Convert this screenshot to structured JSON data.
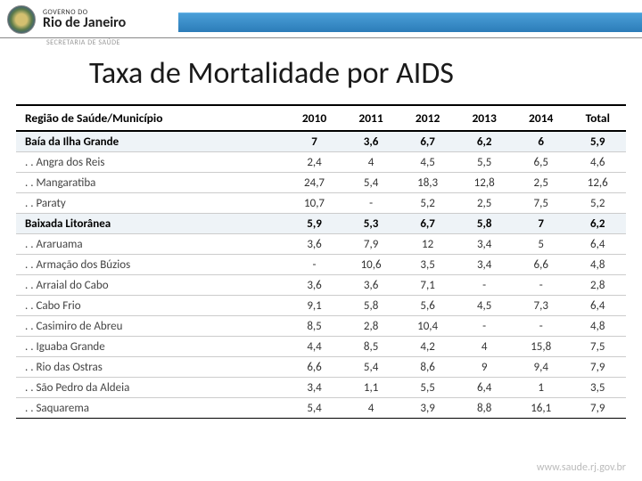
{
  "header": {
    "gov_small": "GOVERNO DO",
    "gov_main": "Rio de Janeiro",
    "secretaria": "SECRETARIA DE SAÚDE"
  },
  "title": "Taxa de Mortalidade por AIDS",
  "table": {
    "columns": [
      "Região de Saúde/Município",
      "2010",
      "2011",
      "2012",
      "2013",
      "2014",
      "Total"
    ],
    "rows": [
      {
        "type": "region",
        "cells": [
          "Baía da Ilha Grande",
          "7",
          "3,6",
          "6,7",
          "6,2",
          "6",
          "5,9"
        ]
      },
      {
        "type": "muni",
        "cells": [
          ". . Angra dos Reis",
          "2,4",
          "4",
          "4,5",
          "5,5",
          "6,5",
          "4,6"
        ]
      },
      {
        "type": "muni",
        "cells": [
          ". . Mangaratiba",
          "24,7",
          "5,4",
          "18,3",
          "12,8",
          "2,5",
          "12,6"
        ]
      },
      {
        "type": "muni",
        "cells": [
          ". . Paraty",
          "10,7",
          "-",
          "5,2",
          "2,5",
          "7,5",
          "5,2"
        ]
      },
      {
        "type": "region",
        "cells": [
          "Baixada Litorânea",
          "5,9",
          "5,3",
          "6,7",
          "5,8",
          "7",
          "6,2"
        ]
      },
      {
        "type": "muni",
        "cells": [
          ". . Araruama",
          "3,6",
          "7,9",
          "12",
          "3,4",
          "5",
          "6,4"
        ]
      },
      {
        "type": "muni",
        "cells": [
          ". . Armação dos Búzios",
          "-",
          "10,6",
          "3,5",
          "3,4",
          "6,6",
          "4,8"
        ]
      },
      {
        "type": "muni",
        "cells": [
          ". . Arraial do Cabo",
          "3,6",
          "3,6",
          "7,1",
          "-",
          "-",
          "2,8"
        ]
      },
      {
        "type": "muni",
        "cells": [
          ". . Cabo Frio",
          "9,1",
          "5,8",
          "5,6",
          "4,5",
          "7,3",
          "6,4"
        ]
      },
      {
        "type": "muni",
        "cells": [
          ". . Casimiro de Abreu",
          "8,5",
          "2,8",
          "10,4",
          "-",
          "-",
          "4,8"
        ]
      },
      {
        "type": "muni",
        "cells": [
          ". . Iguaba Grande",
          "4,4",
          "8,5",
          "4,2",
          "4",
          "15,8",
          "7,5"
        ]
      },
      {
        "type": "muni",
        "cells": [
          ". . Rio das Ostras",
          "6,6",
          "5,4",
          "8,6",
          "9",
          "9,4",
          "7,9"
        ]
      },
      {
        "type": "muni",
        "cells": [
          ". . São Pedro da Aldeia",
          "3,4",
          "1,1",
          "5,5",
          "6,4",
          "1",
          "3,5"
        ]
      },
      {
        "type": "muni",
        "cells": [
          ". . Saquarema",
          "5,4",
          "4",
          "3,9",
          "8,8",
          "16,1",
          "7,9"
        ]
      }
    ]
  },
  "footer": "www.saude.rj.gov.br",
  "colors": {
    "header_bar_top": "#4a9fd8",
    "header_bar_bottom": "#2c7cb8",
    "region_row_bg": "#eef3f7",
    "grid_line": "#cccccc",
    "border_strong": "#000000",
    "footer_text": "#bbbbbb"
  }
}
